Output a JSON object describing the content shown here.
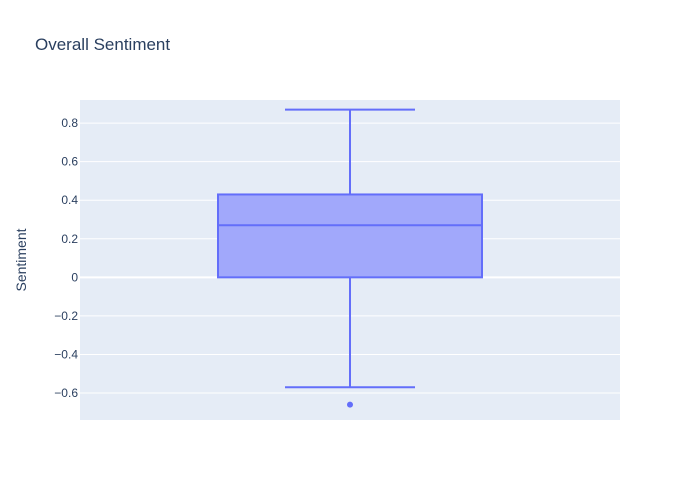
{
  "colors": {
    "plot_background": "#e5ecf6",
    "grid": "#ffffff",
    "box_line": "#636efa",
    "box_fill": "#a1a8fb",
    "text": "#2a3f5f"
  },
  "chart_data": {
    "type": "box",
    "title": "Overall Sentiment",
    "xlabel": "",
    "ylabel": "Sentiment",
    "ylim": [
      -0.74,
      0.92
    ],
    "y_ticks": [
      -0.6,
      -0.4,
      -0.2,
      0,
      0.2,
      0.4,
      0.6,
      0.8
    ],
    "y_tick_labels": [
      "−0.6",
      "−0.4",
      "−0.2",
      "0",
      "0.2",
      "0.4",
      "0.6",
      "0.8"
    ],
    "grid": true,
    "legend": "none",
    "box": {
      "lower_fence": -0.57,
      "q1": 0.0,
      "median": 0.27,
      "q3": 0.43,
      "upper_fence": 0.87,
      "outliers": [
        -0.66
      ]
    }
  }
}
